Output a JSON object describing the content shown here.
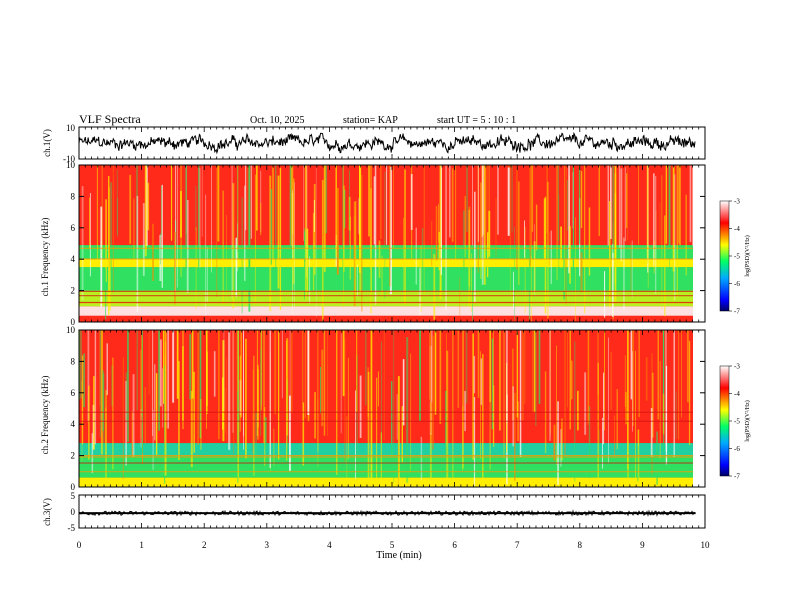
{
  "header": {
    "title": "VLF Spectra",
    "date": "Oct. 10, 2025",
    "station": "station= KAP",
    "start_time": "start  UT =   5  : 10 : 1"
  },
  "chart_data": [
    {
      "type": "line",
      "name": "ch1-waveform",
      "ylabel": "ch.1(V)",
      "ylim": [
        -10,
        10
      ],
      "ytick_labels": [
        "10",
        "-10"
      ],
      "xlim": [
        0,
        10
      ],
      "baseline_range_v": [
        -6,
        6
      ],
      "color": "#000000"
    },
    {
      "type": "heatmap",
      "name": "ch1-spectrogram",
      "ylabel": "ch.1 Frequency (kHz)",
      "ylim": [
        0,
        10
      ],
      "yticks": [
        "0",
        "2",
        "4",
        "6",
        "8",
        "10"
      ],
      "bands_khz": [
        {
          "from": 0,
          "to": 0.4,
          "level": "red"
        },
        {
          "from": 0.4,
          "to": 1.0,
          "level": "white"
        },
        {
          "from": 1.0,
          "to": 2.0,
          "level": "yellow-green"
        },
        {
          "from": 2.0,
          "to": 3.5,
          "level": "green"
        },
        {
          "from": 3.5,
          "to": 4.0,
          "level": "yellow"
        },
        {
          "from": 4.0,
          "to": 4.9,
          "level": "green"
        },
        {
          "from": 4.9,
          "to": 10,
          "level": "red"
        }
      ]
    },
    {
      "type": "heatmap",
      "name": "ch2-spectrogram",
      "ylabel": "ch.2 Frequency (kHz)",
      "ylim": [
        0,
        10
      ],
      "yticks": [
        "0",
        "2",
        "4",
        "6",
        "8",
        "10"
      ],
      "bands_khz": [
        {
          "from": 0,
          "to": 0.6,
          "level": "yellow"
        },
        {
          "from": 0.6,
          "to": 2.0,
          "level": "green"
        },
        {
          "from": 2.0,
          "to": 2.8,
          "level": "cyan-green"
        },
        {
          "from": 2.8,
          "to": 10,
          "level": "red"
        }
      ]
    },
    {
      "type": "line",
      "name": "ch3-waveform",
      "ylabel": "ch.3(V)",
      "ylim": [
        -5,
        5
      ],
      "ytick_labels": [
        "5",
        "0",
        "-5"
      ],
      "xlim": [
        0,
        10
      ],
      "thick_band_v": [
        -0.8,
        -0.2
      ],
      "color": "#000000"
    },
    {
      "type": "colorbar",
      "label": "log(PSD)(V²/Hz)",
      "ticks": [
        "-3",
        "-4",
        "-5",
        "-6",
        "-7"
      ],
      "range": [
        -7,
        -3
      ],
      "colors": [
        "#000066",
        "#0000ff",
        "#00aaff",
        "#00ff66",
        "#ffff00",
        "#ff0000",
        "#ffffff"
      ]
    }
  ],
  "x_axis": {
    "label": "Time  (min)",
    "ticks": [
      "0",
      "1",
      "2",
      "3",
      "4",
      "5",
      "6",
      "7",
      "8",
      "9",
      "10"
    ],
    "data_end_min": 9.85
  }
}
